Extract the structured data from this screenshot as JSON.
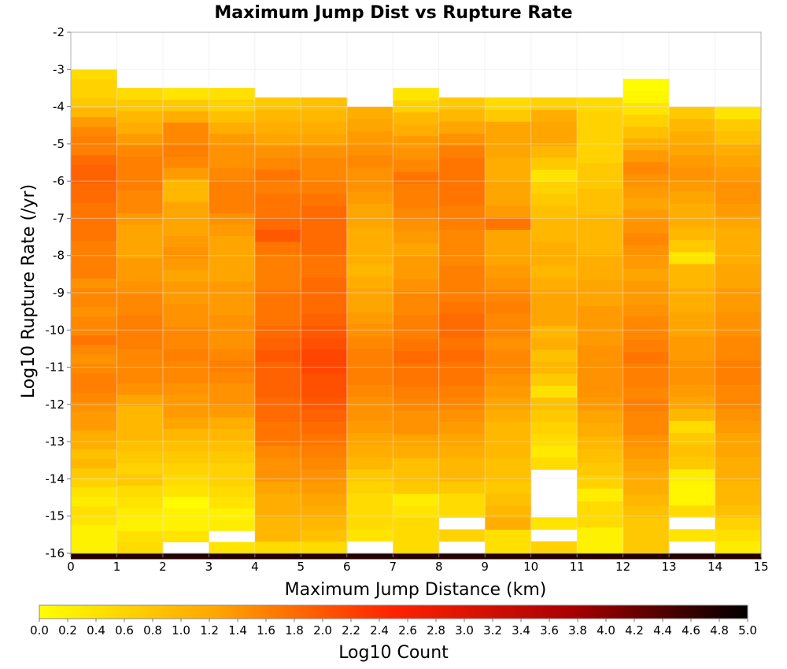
{
  "chart_data": {
    "type": "heatmap",
    "title": "Maximum Jump Dist vs Rupture Rate",
    "xlabel": "Maximum Jump Distance (km)",
    "ylabel": "Log10 Rupture Rate (/yr)",
    "xlim": [
      0,
      15
    ],
    "ylim": [
      -16,
      -2
    ],
    "x_ticks": [
      "0",
      "1",
      "2",
      "3",
      "4",
      "5",
      "6",
      "7",
      "8",
      "9",
      "10",
      "11",
      "12",
      "13",
      "14",
      "15"
    ],
    "y_ticks": [
      "-16",
      "-15",
      "-14",
      "-13",
      "-12",
      "-11",
      "-10",
      "-9",
      "-8",
      "-7",
      "-6",
      "-5",
      "-4",
      "-3",
      "-2"
    ],
    "bin_width_x": 1,
    "bin_height_y": 0.25,
    "grid": true,
    "colorbar": {
      "label": "Log10 Count",
      "range": [
        0,
        5
      ],
      "ticks": [
        "0.0",
        "0.2",
        "0.4",
        "0.6",
        "0.8",
        "1.0",
        "1.2",
        "1.4",
        "1.6",
        "1.8",
        "2.0",
        "2.2",
        "2.4",
        "2.6",
        "2.8",
        "3.0",
        "3.2",
        "3.4",
        "3.6",
        "3.8",
        "4.0",
        "4.2",
        "4.4",
        "4.6",
        "4.8",
        "5.0"
      ],
      "colors": [
        "#ffff00",
        "#ffa500",
        "#ff4500",
        "#cc0000",
        "#000000"
      ]
    },
    "columns": [
      {
        "x": 0,
        "top": -3.0,
        "values": [
          4.6,
          0.15,
          0.15,
          0.15,
          0.3,
          0.35,
          0.2,
          0.3,
          0.5,
          0.6,
          0.8,
          0.7,
          0.9,
          0.9,
          1.1,
          1.1,
          1.2,
          1.3,
          1.4,
          1.4,
          1.3,
          1.2,
          1.3,
          1.5,
          1.3,
          1.3,
          1.2,
          1.3,
          1.3,
          1.2,
          1.4,
          1.4,
          1.4,
          1.4,
          1.5,
          1.5,
          1.5,
          1.5,
          1.6,
          1.6,
          1.7,
          1.7,
          1.6,
          1.4,
          1.4,
          1.3,
          1.1,
          0.8,
          0.6,
          0.5,
          0.5,
          0.4
        ]
      },
      {
        "x": 1,
        "top": -3.5,
        "values": [
          4.6,
          0.4,
          0.35,
          0.15,
          0.2,
          0.3,
          0.4,
          0.6,
          0.5,
          0.6,
          0.7,
          0.8,
          0.8,
          0.8,
          1.0,
          1.2,
          1.3,
          1.3,
          1.3,
          1.4,
          1.4,
          1.4,
          1.3,
          1.3,
          1.2,
          1.1,
          1.1,
          1.0,
          1.0,
          1.0,
          1.1,
          1.3,
          1.3,
          1.4,
          1.4,
          1.4,
          1.3,
          1.1,
          0.9,
          0.8,
          0.6,
          0.4
        ]
      },
      {
        "x": 2,
        "top": -3.5,
        "values": [
          4.6,
          null,
          0.3,
          0.15,
          0.15,
          0.05,
          0.3,
          0.4,
          0.5,
          0.6,
          0.7,
          0.8,
          1.0,
          1.1,
          1.1,
          1.2,
          1.3,
          1.3,
          1.4,
          1.3,
          1.3,
          1.2,
          1.2,
          1.1,
          1.1,
          1.0,
          1.1,
          1.2,
          1.1,
          1.0,
          1.0,
          1.0,
          0.8,
          0.8,
          1.1,
          1.3,
          1.4,
          1.3,
          1.3,
          0.9,
          0.6,
          0.3
        ]
      },
      {
        "x": 3,
        "top": -3.5,
        "values": [
          4.6,
          0.3,
          null,
          0.2,
          0.15,
          0.3,
          0.4,
          0.5,
          0.5,
          0.6,
          0.7,
          0.8,
          0.9,
          1.1,
          1.2,
          1.2,
          1.3,
          1.4,
          1.3,
          1.2,
          1.2,
          1.2,
          1.1,
          1.1,
          1.1,
          1.0,
          1.0,
          1.0,
          1.0,
          1.1,
          1.2,
          1.4,
          1.4,
          1.4,
          1.3,
          1.2,
          1.2,
          1.1,
          0.9,
          0.7,
          0.5,
          0.35
        ]
      },
      {
        "x": 4,
        "top": -3.75,
        "values": [
          4.6,
          0.4,
          0.8,
          0.8,
          0.9,
          0.9,
          1.0,
          1.2,
          1.2,
          1.3,
          1.5,
          1.5,
          1.6,
          1.6,
          1.7,
          1.7,
          1.7,
          1.8,
          1.7,
          1.6,
          1.5,
          1.5,
          1.5,
          1.4,
          1.4,
          1.4,
          1.5,
          1.8,
          1.6,
          1.5,
          1.5,
          1.4,
          1.5,
          1.3,
          1.2,
          1.0,
          0.9,
          0.8,
          0.6
        ]
      },
      {
        "x": 5,
        "top": -3.75,
        "values": [
          4.6,
          0.4,
          0.7,
          0.8,
          0.9,
          1.0,
          1.1,
          1.2,
          1.3,
          1.4,
          1.5,
          1.6,
          1.7,
          1.8,
          1.9,
          1.9,
          2.0,
          2.0,
          1.9,
          1.8,
          1.7,
          1.6,
          1.6,
          1.6,
          1.5,
          1.5,
          1.6,
          1.6,
          1.6,
          1.6,
          1.5,
          1.4,
          1.3,
          1.3,
          1.2,
          1.0,
          0.9,
          0.8,
          0.7
        ]
      },
      {
        "x": 6,
        "top": -4.0,
        "values": [
          4.6,
          null,
          0.3,
          0.4,
          0.4,
          0.4,
          0.5,
          0.6,
          0.8,
          0.9,
          1.0,
          1.1,
          1.2,
          1.2,
          1.3,
          1.4,
          1.4,
          1.4,
          1.3,
          1.2,
          1.1,
          1.0,
          1.0,
          0.9,
          0.8,
          0.9,
          0.9,
          0.9,
          1.0,
          1.0,
          1.1,
          1.2,
          1.2,
          1.3,
          1.2,
          1.1,
          1.0,
          0.9
        ]
      },
      {
        "x": 7,
        "top": -3.5,
        "values": [
          4.6,
          0.4,
          0.4,
          0.4,
          0.3,
          0.2,
          0.6,
          0.7,
          0.7,
          0.9,
          1.0,
          1.2,
          1.2,
          1.3,
          1.4,
          1.5,
          1.5,
          1.6,
          1.5,
          1.4,
          1.4,
          1.3,
          1.3,
          1.2,
          1.1,
          1.1,
          1.0,
          1.1,
          1.2,
          1.3,
          1.4,
          1.4,
          1.5,
          1.3,
          1.2,
          1.1,
          0.9,
          0.8,
          0.5,
          0.3
        ]
      },
      {
        "x": 8,
        "top": -3.75,
        "values": [
          4.6,
          null,
          0.5,
          null,
          0.4,
          0.4,
          0.6,
          0.8,
          0.8,
          0.9,
          1.0,
          1.1,
          1.2,
          1.3,
          1.4,
          1.5,
          1.5,
          1.6,
          1.5,
          1.6,
          1.6,
          1.5,
          1.4,
          1.4,
          1.4,
          1.3,
          1.3,
          1.3,
          1.4,
          1.4,
          1.5,
          1.5,
          1.5,
          1.5,
          1.4,
          1.2,
          1.0,
          0.8,
          0.6
        ]
      },
      {
        "x": 9,
        "top": -3.75,
        "values": [
          4.6,
          0.35,
          0.35,
          0.9,
          0.8,
          0.7,
          0.6,
          0.7,
          0.7,
          0.8,
          0.8,
          0.8,
          0.9,
          1.0,
          1.1,
          1.2,
          1.3,
          1.3,
          1.2,
          1.3,
          1.3,
          1.4,
          1.3,
          1.2,
          1.1,
          1.0,
          1.0,
          1.0,
          1.5,
          1.1,
          1.0,
          1.0,
          0.9,
          0.9,
          1.0,
          1.0,
          1.0,
          0.6,
          0.4
        ]
      },
      {
        "x": 10,
        "top": -3.75,
        "values": [
          4.6,
          0.5,
          null,
          0.3,
          null,
          null,
          null,
          null,
          0.4,
          0.25,
          0.4,
          0.5,
          0.6,
          0.7,
          0.35,
          0.6,
          0.8,
          0.7,
          0.9,
          0.8,
          1.0,
          1.0,
          1.0,
          0.9,
          0.8,
          0.9,
          0.9,
          0.8,
          0.8,
          0.7,
          0.6,
          0.5,
          0.3,
          0.6,
          0.8,
          1.0,
          1.0,
          0.9,
          0.5
        ]
      },
      {
        "x": 11,
        "top": -3.75,
        "values": [
          4.6,
          0.15,
          0.15,
          0.4,
          0.4,
          0.2,
          0.5,
          0.6,
          0.7,
          0.8,
          0.9,
          1.0,
          1.1,
          1.2,
          1.2,
          1.2,
          1.2,
          1.1,
          1.1,
          1.1,
          1.0,
          1.0,
          0.9,
          0.9,
          0.8,
          0.8,
          0.8,
          0.7,
          0.7,
          0.6,
          0.6,
          0.5,
          0.5,
          0.5,
          0.5,
          0.4
        ]
      },
      {
        "x": 12,
        "top": -3.25,
        "values": [
          4.6,
          0.6,
          0.6,
          0.6,
          0.7,
          0.8,
          0.9,
          0.9,
          1.0,
          1.1,
          1.2,
          1.3,
          1.3,
          1.4,
          1.3,
          1.4,
          1.4,
          1.5,
          1.4,
          1.3,
          1.3,
          1.2,
          1.1,
          1.1,
          1.0,
          1.1,
          1.2,
          1.3,
          1.2,
          1.1,
          1.0,
          1.1,
          1.2,
          1.3,
          1.1,
          0.9,
          0.7,
          0.5,
          0.3,
          0.1,
          0.05
        ]
      },
      {
        "x": 13,
        "top": -4.0,
        "values": [
          4.6,
          null,
          0.3,
          null,
          0.4,
          0.1,
          0.1,
          0.2,
          0.6,
          0.7,
          0.6,
          0.4,
          0.8,
          1.0,
          1.1,
          1.2,
          1.2,
          1.1,
          1.1,
          1.0,
          1.0,
          0.9,
          0.9,
          0.8,
          0.8,
          0.3,
          0.6,
          0.8,
          0.9,
          0.9,
          1.0,
          1.1,
          1.2,
          1.1,
          1.0,
          0.9,
          0.8,
          0.6
        ]
      },
      {
        "x": 14,
        "top": -4.0,
        "values": [
          4.6,
          0.2,
          0.35,
          0.5,
          0.7,
          0.8,
          0.8,
          0.9,
          0.9,
          1.0,
          1.0,
          1.1,
          1.2,
          1.3,
          1.3,
          1.4,
          1.4,
          1.3,
          1.3,
          1.2,
          1.2,
          1.1,
          1.1,
          1.0,
          1.0,
          0.9,
          0.9,
          0.9,
          1.0,
          1.1,
          1.2,
          1.2,
          1.1,
          1.0,
          0.9,
          0.7,
          0.6,
          0.3
        ]
      }
    ]
  }
}
